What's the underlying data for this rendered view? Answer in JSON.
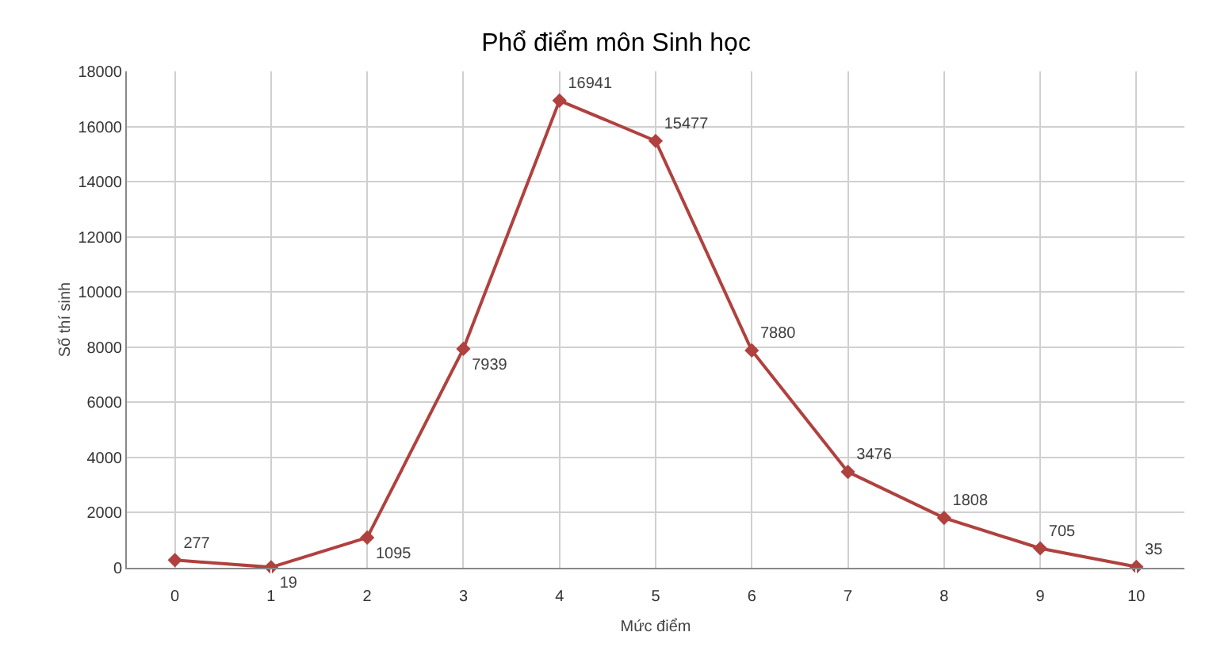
{
  "chart_data": {
    "type": "line",
    "title": "Phổ điểm môn Sinh học",
    "xlabel": "Mức điểm",
    "ylabel": "Số thí sinh",
    "x": [
      0,
      1,
      2,
      3,
      4,
      5,
      6,
      7,
      8,
      9,
      10
    ],
    "values": [
      277,
      19,
      1095,
      7939,
      16941,
      15477,
      7880,
      3476,
      1808,
      705,
      35
    ],
    "color": "#b0413e",
    "xlim": [
      -0.5,
      10.5
    ],
    "xticks": [
      0,
      1,
      2,
      3,
      4,
      5,
      6,
      7,
      8,
      9,
      10
    ],
    "ylim": [
      0,
      18000
    ],
    "yticks": [
      0,
      2000,
      4000,
      6000,
      8000,
      10000,
      12000,
      14000,
      16000,
      18000
    ],
    "grid": true,
    "marker": "diamond",
    "line_style": "solid",
    "data_labels": true,
    "legend": false
  }
}
